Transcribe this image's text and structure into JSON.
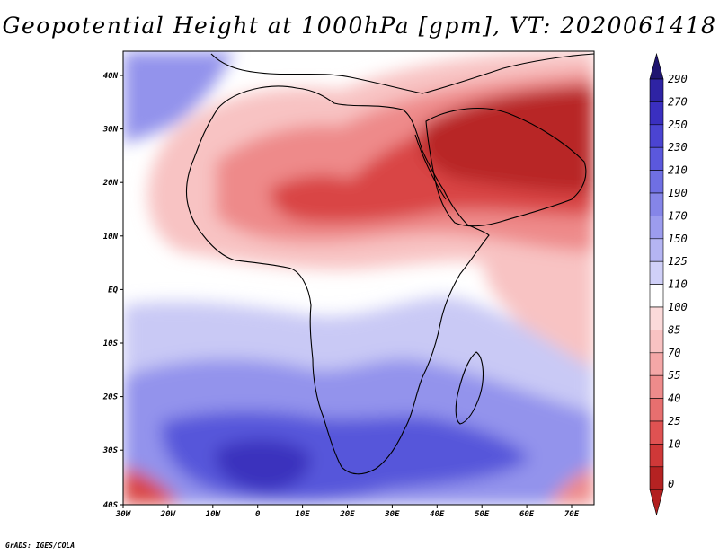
{
  "title": "Geopotential Height at 1000hPa [gpm], VT: 2020061418",
  "credit": "GrADS: IGES/COLA",
  "axes": {
    "lat_labels": [
      "40N",
      "30N",
      "20N",
      "10N",
      "EQ",
      "10S",
      "20S",
      "30S",
      "40S"
    ],
    "lon_labels": [
      "30W",
      "20W",
      "10W",
      "0",
      "10E",
      "20E",
      "30E",
      "40E",
      "50E",
      "60E",
      "70E"
    ]
  },
  "colorbar": {
    "labels": [
      "290",
      "270",
      "250",
      "230",
      "210",
      "190",
      "170",
      "150",
      "125",
      "110",
      "100",
      "85",
      "70",
      "55",
      "40",
      "25",
      "10",
      "0"
    ],
    "colors": [
      "#2e23a4",
      "#3a2fc0",
      "#4b44d2",
      "#5b58dd",
      "#6f6fe3",
      "#8585e8",
      "#9c9cee",
      "#b5b5f3",
      "#d0d0f8",
      "#ffffff",
      "#fbdada",
      "#f8c2c2",
      "#f4a7a7",
      "#ee8b8b",
      "#e76f6f",
      "#df5252",
      "#cf3838",
      "#b52222"
    ],
    "top_arrow": "#1f1570",
    "bottom_arrow": "#b21f1f"
  },
  "map_colors": {
    "white": "#ffffff",
    "blue_light": "#c9c9f5",
    "blue_mid": "#9393ec",
    "blue_deep": "#5656da",
    "blue_core": "#3b32bd",
    "red_light": "#f8c3c3",
    "red_mid": "#ee8a8a",
    "red_deep": "#d94545",
    "red_core": "#b82525",
    "coast": "#000000"
  }
}
